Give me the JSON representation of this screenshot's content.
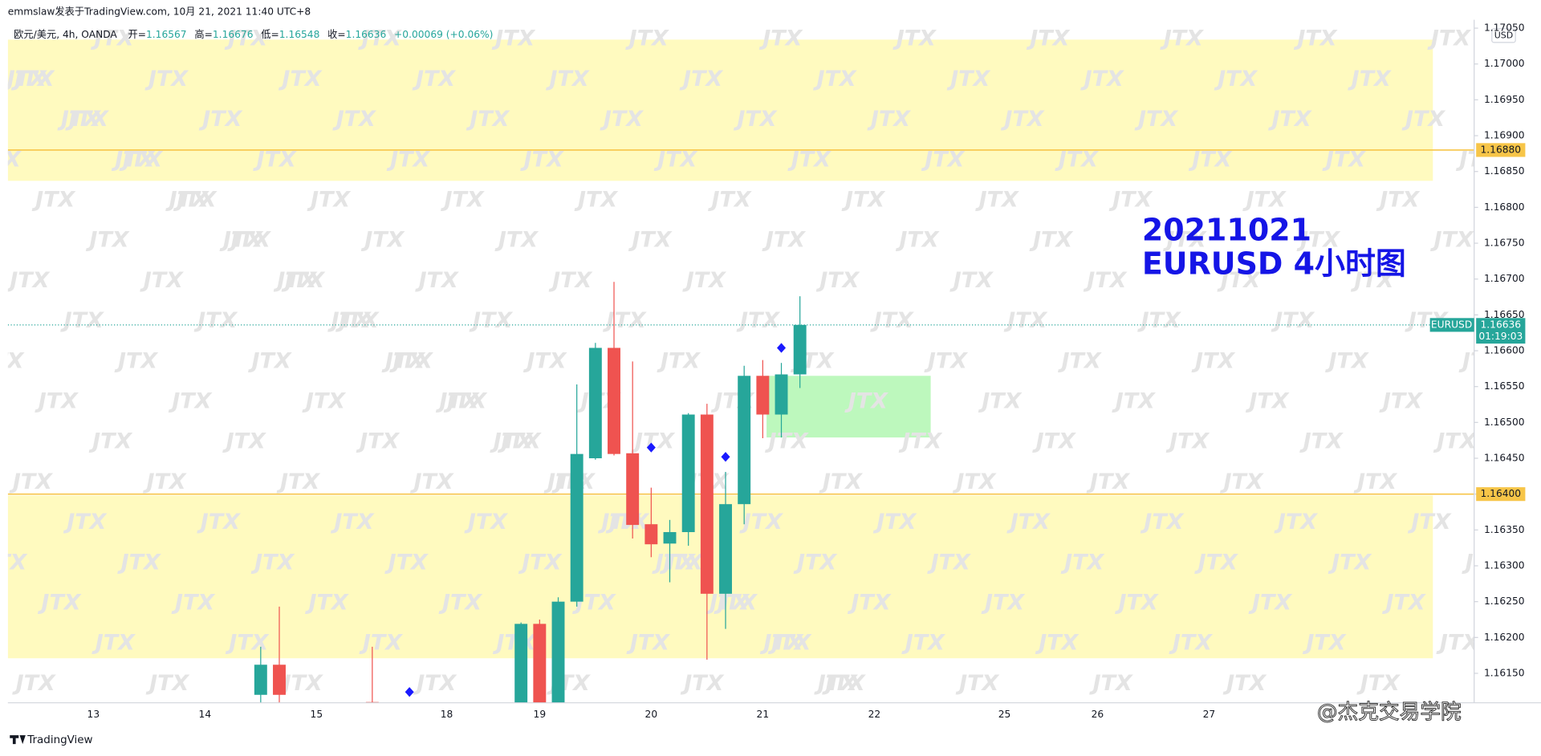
{
  "header": {
    "byline": "emmslaw发表于TradingView.com, 10月 21, 2021 11:40 UTC+8",
    "symbol": "欧元/美元, 4h, OANDA",
    "ohlc": [
      {
        "label": "开=",
        "value": "1.16567"
      },
      {
        "label": "高=",
        "value": "1.16676"
      },
      {
        "label": "低=",
        "value": "1.16548"
      },
      {
        "label": "收=",
        "value": "1.16636"
      }
    ],
    "change": "+0.00069 (+0.06%)"
  },
  "footer": {
    "logo": "TradingView",
    "watermark": "@杰克交易学院",
    "pattern": "JTX"
  },
  "chart_data": {
    "type": "candlestick",
    "currency": "USD",
    "annotation": [
      "20211021",
      "EURUSD 4小时图"
    ],
    "categories": [
      "13",
      null,
      null,
      null,
      null,
      null,
      "14",
      null,
      null,
      null,
      null,
      null,
      "15",
      null,
      null,
      null,
      null,
      null,
      null,
      "18",
      null,
      null,
      null,
      null,
      "19",
      null,
      null,
      null,
      null,
      null,
      "20",
      null,
      null,
      null,
      null,
      null,
      "21",
      null,
      null,
      null,
      null,
      null,
      "22",
      null,
      null,
      null,
      null,
      null,
      null,
      "25",
      null,
      null,
      null,
      null,
      "26",
      null,
      null,
      null,
      null,
      null,
      "27"
    ],
    "open": [
      null,
      null,
      null,
      null,
      null,
      null,
      null,
      null,
      null,
      1.1612,
      1.16162,
      null,
      null,
      null,
      null,
      1.1611,
      null,
      null,
      null,
      null,
      null,
      null,
      null,
      1.161,
      1.16219,
      1.161,
      1.1625,
      1.1645,
      1.16604,
      1.16457,
      1.16358,
      1.16331,
      1.16347,
      1.16511,
      1.16261,
      1.16386,
      1.16565,
      1.16511,
      1.16567,
      null,
      null,
      null,
      null,
      null,
      null,
      null,
      null,
      null,
      null,
      null,
      null,
      null,
      null,
      null,
      null,
      null,
      null,
      null,
      null,
      null,
      null
    ],
    "high": [
      null,
      null,
      null,
      null,
      null,
      null,
      null,
      null,
      null,
      1.16187,
      1.16243,
      null,
      null,
      null,
      null,
      1.16187,
      null,
      null,
      null,
      null,
      null,
      null,
      null,
      1.16221,
      1.16225,
      1.16256,
      1.16553,
      1.16611,
      1.16696,
      1.16585,
      1.16409,
      1.16364,
      1.16513,
      1.16526,
      1.16431,
      1.16579,
      1.16587,
      1.16583,
      1.16676,
      null,
      null,
      null,
      null,
      null,
      null,
      null,
      null,
      null,
      null,
      null,
      null,
      null,
      null,
      null,
      null,
      null,
      null,
      null,
      null,
      null,
      null
    ],
    "low": [
      null,
      null,
      null,
      null,
      null,
      null,
      null,
      null,
      null,
      1.161,
      1.1609,
      null,
      null,
      null,
      null,
      1.1608,
      null,
      null,
      null,
      null,
      null,
      null,
      null,
      1.1609,
      1.1609,
      1.16095,
      1.16243,
      1.16448,
      1.16454,
      1.16338,
      1.16312,
      1.16277,
      1.16328,
      1.16169,
      1.16212,
      1.16358,
      1.16478,
      1.16479,
      1.16548,
      null,
      null,
      null,
      null,
      null,
      null,
      null,
      null,
      null,
      null,
      null,
      null,
      null,
      null,
      null,
      null,
      null,
      null,
      null,
      null,
      null,
      null
    ],
    "close": [
      null,
      null,
      null,
      null,
      null,
      null,
      null,
      null,
      null,
      1.16162,
      1.1612,
      null,
      null,
      null,
      null,
      1.16095,
      null,
      null,
      null,
      null,
      null,
      null,
      null,
      1.16219,
      1.161,
      1.1625,
      1.16456,
      1.16604,
      1.16456,
      1.16357,
      1.1633,
      1.16347,
      1.16511,
      1.16261,
      1.16386,
      1.16565,
      1.16511,
      1.16567,
      1.16636,
      null,
      null,
      null,
      null,
      null,
      null,
      null,
      null,
      null,
      null,
      null,
      null,
      null,
      null,
      null,
      null,
      null,
      null,
      null,
      null,
      null,
      null
    ],
    "markers": {
      "color": "#1a1aff",
      "values": [
        null,
        null,
        null,
        null,
        null,
        null,
        null,
        null,
        null,
        null,
        null,
        null,
        null,
        null,
        null,
        null,
        null,
        1.16124,
        null,
        null,
        null,
        null,
        null,
        null,
        null,
        null,
        null,
        null,
        null,
        null,
        1.16465,
        null,
        null,
        null,
        1.16452,
        null,
        null,
        1.16604,
        null,
        null,
        null,
        null,
        null,
        null,
        null,
        null,
        null,
        null,
        null,
        null,
        null,
        null,
        null,
        null,
        null,
        null,
        null,
        null,
        null,
        null,
        null
      ]
    },
    "up_color": "#26a69a",
    "down_color": "#ef5350",
    "zones": [
      {
        "range": [
          1.16837,
          1.17034
        ],
        "color": "#fff9b8"
      },
      {
        "range": [
          1.16171,
          1.16398
        ],
        "color": "#fff9b8"
      },
      {
        "range": [
          1.16479,
          1.16565
        ],
        "color": "#b6f7b6"
      }
    ],
    "levels": [
      {
        "value": 1.1688,
        "label": "1.16880",
        "color": "#f7c548"
      },
      {
        "value": 1.164,
        "label": "1.16400",
        "color": "#f7c548"
      }
    ],
    "last": {
      "value": 1.16636,
      "label": "1.16636",
      "symbol": "EURUSD",
      "countdown": "01:19:03",
      "color": "#26a69a"
    },
    "ylim": [
      1.1611,
      1.1706
    ],
    "yticks": [
      {
        "value": 1.1615,
        "label": "1.16150"
      },
      {
        "value": 1.162,
        "label": "1.16200"
      },
      {
        "value": 1.1625,
        "label": "1.16250"
      },
      {
        "value": 1.163,
        "label": "1.16300"
      },
      {
        "value": 1.1635,
        "label": "1.16350"
      },
      {
        "value": 1.164,
        "label": "1.16400"
      },
      {
        "value": 1.1645,
        "label": "1.16450"
      },
      {
        "value": 1.165,
        "label": "1.16500"
      },
      {
        "value": 1.1655,
        "label": "1.16550"
      },
      {
        "value": 1.166,
        "label": "1.16600"
      },
      {
        "value": 1.1665,
        "label": "1.16650"
      },
      {
        "value": 1.167,
        "label": "1.16700"
      },
      {
        "value": 1.1675,
        "label": "1.16750"
      },
      {
        "value": 1.168,
        "label": "1.16800"
      },
      {
        "value": 1.1685,
        "label": "1.16850"
      },
      {
        "value": 1.169,
        "label": "1.16900"
      },
      {
        "value": 1.1695,
        "label": "1.16950"
      },
      {
        "value": 1.17,
        "label": "1.17000"
      },
      {
        "value": 1.1705,
        "label": "1.17050"
      }
    ],
    "grid": false
  }
}
